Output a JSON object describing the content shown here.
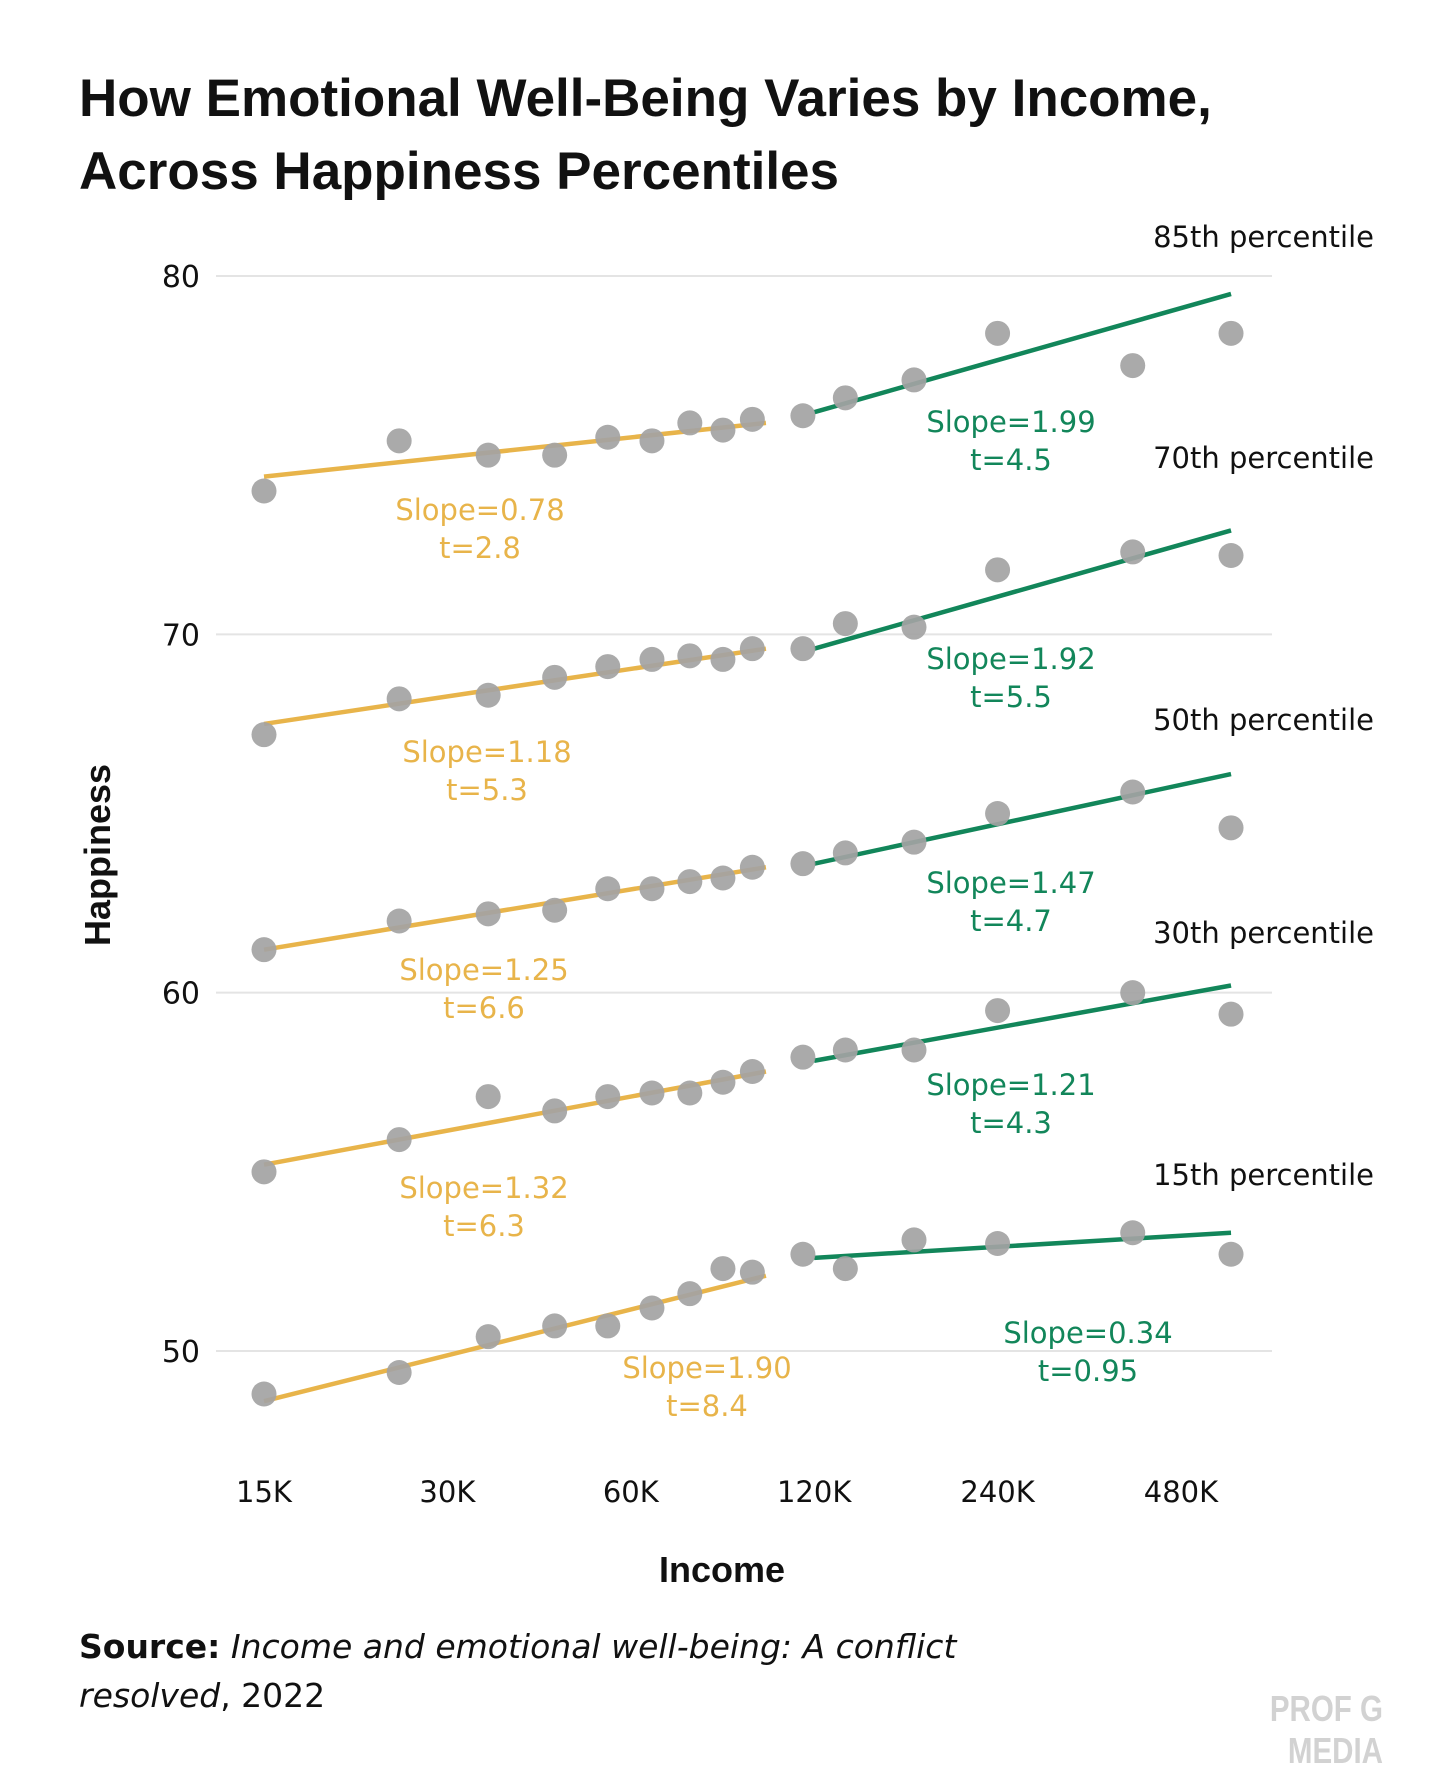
{
  "chart_data": {
    "type": "scatter",
    "title": "How Emotional Well-Being Varies by Income, Across Happiness Percentiles",
    "xlabel": "Income",
    "ylabel": "Happiness",
    "x_scale": "log2",
    "xlim": [
      15000,
      600000
    ],
    "ylim": [
      48,
      81
    ],
    "x_ticks": [
      {
        "value": 15000,
        "label": "15K"
      },
      {
        "value": 30000,
        "label": "30K"
      },
      {
        "value": 60000,
        "label": "60K"
      },
      {
        "value": 120000,
        "label": "120K"
      },
      {
        "value": 240000,
        "label": "240K"
      },
      {
        "value": 480000,
        "label": "480K"
      }
    ],
    "y_ticks": [
      {
        "value": 50,
        "label": "50"
      },
      {
        "value": 60,
        "label": "60"
      },
      {
        "value": 70,
        "label": "70"
      },
      {
        "value": 80,
        "label": "80"
      }
    ],
    "grid": "horizontal",
    "colors": {
      "points": "#a3a3a3",
      "low_fit": "#e8b44a",
      "high_fit": "#12865a",
      "grid": "#e4e4e4"
    },
    "series": [
      {
        "name": "85th percentile",
        "x": [
          15000,
          25000,
          35000,
          45000,
          55000,
          65000,
          75000,
          85000,
          95000,
          115000,
          135000,
          175000,
          240000,
          400000,
          580000
        ],
        "y": [
          74.0,
          75.4,
          75.0,
          75.0,
          75.5,
          75.4,
          75.9,
          75.7,
          76.0,
          76.1,
          76.6,
          77.1,
          78.4,
          77.5,
          78.4
        ],
        "low_fit": {
          "x": [
            15000,
            100000
          ],
          "y": [
            74.4,
            75.9
          ],
          "slope_label": "Slope=0.78",
          "t_label": "t=2.8"
        },
        "high_fit": {
          "x": [
            120000,
            580000
          ],
          "y": [
            76.2,
            79.5
          ],
          "slope_label": "Slope=1.99",
          "t_label": "t=4.5"
        }
      },
      {
        "name": "70th percentile",
        "x": [
          15000,
          25000,
          35000,
          45000,
          55000,
          65000,
          75000,
          85000,
          95000,
          115000,
          135000,
          175000,
          240000,
          400000,
          580000
        ],
        "y": [
          67.2,
          68.2,
          68.3,
          68.8,
          69.1,
          69.3,
          69.4,
          69.3,
          69.6,
          69.6,
          70.3,
          70.2,
          71.8,
          72.3,
          72.2
        ],
        "low_fit": {
          "x": [
            15000,
            100000
          ],
          "y": [
            67.5,
            69.6
          ],
          "slope_label": "Slope=1.18",
          "t_label": "t=5.3"
        },
        "high_fit": {
          "x": [
            120000,
            580000
          ],
          "y": [
            69.6,
            72.9
          ],
          "slope_label": "Slope=1.92",
          "t_label": "t=5.5"
        }
      },
      {
        "name": "50th percentile",
        "x": [
          15000,
          25000,
          35000,
          45000,
          55000,
          65000,
          75000,
          85000,
          95000,
          115000,
          135000,
          175000,
          240000,
          400000,
          580000
        ],
        "y": [
          61.2,
          62.0,
          62.2,
          62.3,
          62.9,
          62.9,
          63.1,
          63.2,
          63.5,
          63.6,
          63.9,
          64.2,
          65.0,
          65.6,
          64.6
        ],
        "low_fit": {
          "x": [
            15000,
            100000
          ],
          "y": [
            61.2,
            63.5
          ],
          "slope_label": "Slope=1.25",
          "t_label": "t=6.6"
        },
        "high_fit": {
          "x": [
            120000,
            580000
          ],
          "y": [
            63.6,
            66.1
          ],
          "slope_label": "Slope=1.47",
          "t_label": "t=4.7"
        }
      },
      {
        "name": "30th percentile",
        "x": [
          15000,
          25000,
          35000,
          45000,
          55000,
          65000,
          75000,
          85000,
          95000,
          115000,
          135000,
          175000,
          240000,
          400000,
          580000
        ],
        "y": [
          55.0,
          55.9,
          57.1,
          56.7,
          57.1,
          57.2,
          57.2,
          57.5,
          57.8,
          58.2,
          58.4,
          58.4,
          59.5,
          60.0,
          59.4
        ],
        "low_fit": {
          "x": [
            15000,
            100000
          ],
          "y": [
            55.2,
            57.8
          ],
          "slope_label": "Slope=1.32",
          "t_label": "t=6.3"
        },
        "high_fit": {
          "x": [
            120000,
            580000
          ],
          "y": [
            58.1,
            60.2
          ],
          "slope_label": "Slope=1.21",
          "t_label": "t=4.3"
        }
      },
      {
        "name": "15th percentile",
        "x": [
          15000,
          25000,
          35000,
          45000,
          55000,
          65000,
          75000,
          85000,
          95000,
          115000,
          135000,
          175000,
          240000,
          400000,
          580000
        ],
        "y": [
          48.8,
          49.4,
          50.4,
          50.7,
          50.7,
          51.2,
          51.6,
          52.3,
          52.2,
          52.7,
          52.3,
          53.1,
          53.0,
          53.3,
          52.7
        ],
        "low_fit": {
          "x": [
            15000,
            100000
          ],
          "y": [
            48.6,
            52.1
          ],
          "slope_label": "Slope=1.90",
          "t_label": "t=8.4"
        },
        "high_fit": {
          "x": [
            120000,
            580000
          ],
          "y": [
            52.6,
            53.3
          ],
          "slope_label": "Slope=0.34",
          "t_label": "t=0.95"
        }
      }
    ]
  },
  "source": {
    "label": "Source:",
    "title": "Income and emotional well-being: A conflict resolved",
    "year": ", 2022"
  },
  "brand": "PROF G MEDIA"
}
